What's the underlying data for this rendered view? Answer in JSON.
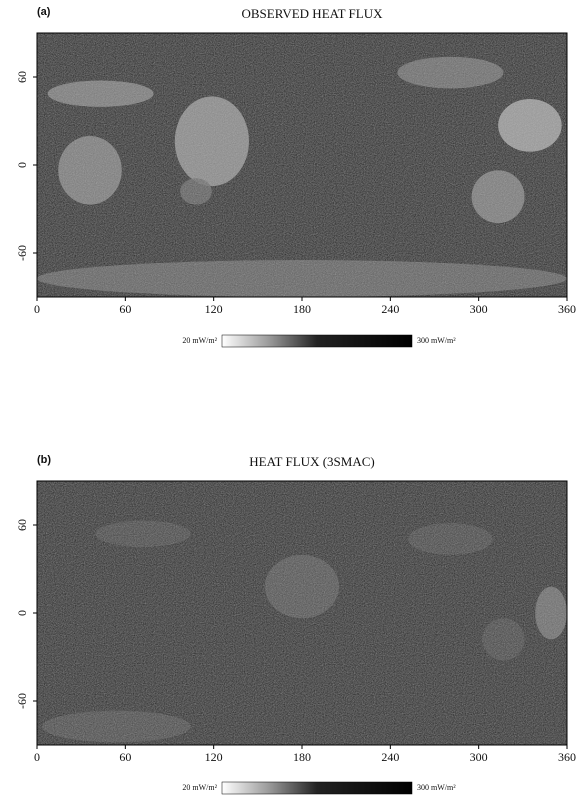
{
  "panels": [
    {
      "label": "(a)",
      "title": "OBSERVED HEAT FLUX",
      "xlim": [
        0,
        360
      ],
      "ylim": [
        -90,
        90
      ],
      "xticks": [
        0,
        60,
        120,
        180,
        240,
        300,
        360
      ],
      "yticks": [
        60,
        0,
        -60
      ],
      "colorbar": {
        "min_label": "20 mW/m²",
        "max_label": "300 mW/m²"
      }
    },
    {
      "label": "(b)",
      "title": "HEAT FLUX (3SMAC)",
      "xlim": [
        0,
        360
      ],
      "ylim": [
        -90,
        90
      ],
      "xticks": [
        0,
        60,
        120,
        180,
        240,
        300,
        360
      ],
      "yticks": [
        60,
        0,
        -60
      ],
      "colorbar": {
        "min_label": "20 mW/m²",
        "max_label": "300 mW/m²"
      }
    }
  ]
}
